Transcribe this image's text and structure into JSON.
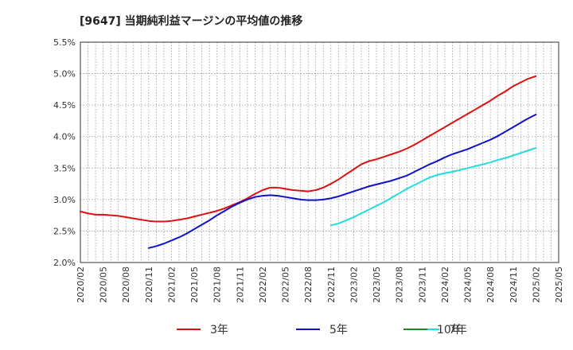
{
  "chart_data": {
    "type": "line",
    "title": "[9647]  当期純利益マージンの平均値の推移",
    "xlabel": "",
    "ylabel": "",
    "ylim": [
      2.0,
      5.5
    ],
    "y_ticks": [
      "2.0%",
      "2.5%",
      "3.0%",
      "3.5%",
      "4.0%",
      "4.5%",
      "5.0%",
      "5.5%"
    ],
    "x_ticks": [
      "2020/02",
      "2020/05",
      "2020/08",
      "2020/11",
      "2021/02",
      "2021/05",
      "2021/08",
      "2021/11",
      "2022/02",
      "2022/05",
      "2022/08",
      "2022/11",
      "2023/02",
      "2023/05",
      "2023/08",
      "2023/11",
      "2024/02",
      "2024/05",
      "2024/08",
      "2024/11",
      "2025/02",
      "2025/05"
    ],
    "grid": true,
    "legend_position": "bottom",
    "series": [
      {
        "name": "3年",
        "color": "#dd1111",
        "points": [
          [
            "2020/02",
            2.81
          ],
          [
            "2020/03",
            2.78
          ],
          [
            "2020/04",
            2.76
          ],
          [
            "2020/05",
            2.76
          ],
          [
            "2020/06",
            2.75
          ],
          [
            "2020/07",
            2.74
          ],
          [
            "2020/08",
            2.72
          ],
          [
            "2020/09",
            2.7
          ],
          [
            "2020/10",
            2.68
          ],
          [
            "2020/11",
            2.66
          ],
          [
            "2020/12",
            2.65
          ],
          [
            "2021/01",
            2.65
          ],
          [
            "2021/02",
            2.66
          ],
          [
            "2021/03",
            2.68
          ],
          [
            "2021/04",
            2.7
          ],
          [
            "2021/05",
            2.73
          ],
          [
            "2021/06",
            2.76
          ],
          [
            "2021/07",
            2.79
          ],
          [
            "2021/08",
            2.82
          ],
          [
            "2021/09",
            2.86
          ],
          [
            "2021/10",
            2.91
          ],
          [
            "2021/11",
            2.96
          ],
          [
            "2021/12",
            3.02
          ],
          [
            "2022/01",
            3.09
          ],
          [
            "2022/02",
            3.15
          ],
          [
            "2022/03",
            3.19
          ],
          [
            "2022/04",
            3.19
          ],
          [
            "2022/05",
            3.17
          ],
          [
            "2022/06",
            3.15
          ],
          [
            "2022/07",
            3.14
          ],
          [
            "2022/08",
            3.13
          ],
          [
            "2022/09",
            3.15
          ],
          [
            "2022/10",
            3.19
          ],
          [
            "2022/11",
            3.25
          ],
          [
            "2022/12",
            3.32
          ],
          [
            "2023/01",
            3.4
          ],
          [
            "2023/02",
            3.48
          ],
          [
            "2023/03",
            3.56
          ],
          [
            "2023/04",
            3.61
          ],
          [
            "2023/05",
            3.64
          ],
          [
            "2023/06",
            3.68
          ],
          [
            "2023/07",
            3.72
          ],
          [
            "2023/08",
            3.76
          ],
          [
            "2023/09",
            3.81
          ],
          [
            "2023/10",
            3.87
          ],
          [
            "2023/11",
            3.94
          ],
          [
            "2023/12",
            4.01
          ],
          [
            "2024/01",
            4.08
          ],
          [
            "2024/02",
            4.15
          ],
          [
            "2024/03",
            4.22
          ],
          [
            "2024/04",
            4.29
          ],
          [
            "2024/05",
            4.36
          ],
          [
            "2024/06",
            4.43
          ],
          [
            "2024/07",
            4.5
          ],
          [
            "2024/08",
            4.57
          ],
          [
            "2024/09",
            4.65
          ],
          [
            "2024/10",
            4.72
          ],
          [
            "2024/11",
            4.8
          ],
          [
            "2024/12",
            4.86
          ],
          [
            "2025/01",
            4.92
          ],
          [
            "2025/02",
            4.96
          ]
        ]
      },
      {
        "name": "5年",
        "color": "#1111cc",
        "points": [
          [
            "2020/11",
            2.23
          ],
          [
            "2020/12",
            2.26
          ],
          [
            "2021/01",
            2.3
          ],
          [
            "2021/02",
            2.35
          ],
          [
            "2021/03",
            2.4
          ],
          [
            "2021/04",
            2.46
          ],
          [
            "2021/05",
            2.53
          ],
          [
            "2021/06",
            2.6
          ],
          [
            "2021/07",
            2.67
          ],
          [
            "2021/08",
            2.75
          ],
          [
            "2021/09",
            2.82
          ],
          [
            "2021/10",
            2.89
          ],
          [
            "2021/11",
            2.95
          ],
          [
            "2021/12",
            3.0
          ],
          [
            "2022/01",
            3.04
          ],
          [
            "2022/02",
            3.06
          ],
          [
            "2022/03",
            3.07
          ],
          [
            "2022/04",
            3.06
          ],
          [
            "2022/05",
            3.04
          ],
          [
            "2022/06",
            3.02
          ],
          [
            "2022/07",
            3.0
          ],
          [
            "2022/08",
            2.99
          ],
          [
            "2022/09",
            2.99
          ],
          [
            "2022/10",
            3.0
          ],
          [
            "2022/11",
            3.02
          ],
          [
            "2022/12",
            3.05
          ],
          [
            "2023/01",
            3.09
          ],
          [
            "2023/02",
            3.13
          ],
          [
            "2023/03",
            3.17
          ],
          [
            "2023/04",
            3.21
          ],
          [
            "2023/05",
            3.24
          ],
          [
            "2023/06",
            3.27
          ],
          [
            "2023/07",
            3.3
          ],
          [
            "2023/08",
            3.34
          ],
          [
            "2023/09",
            3.38
          ],
          [
            "2023/10",
            3.44
          ],
          [
            "2023/11",
            3.5
          ],
          [
            "2023/12",
            3.56
          ],
          [
            "2024/01",
            3.61
          ],
          [
            "2024/02",
            3.67
          ],
          [
            "2024/03",
            3.72
          ],
          [
            "2024/04",
            3.76
          ],
          [
            "2024/05",
            3.8
          ],
          [
            "2024/06",
            3.85
          ],
          [
            "2024/07",
            3.9
          ],
          [
            "2024/08",
            3.95
          ],
          [
            "2024/09",
            4.01
          ],
          [
            "2024/10",
            4.08
          ],
          [
            "2024/11",
            4.15
          ],
          [
            "2024/12",
            4.22
          ],
          [
            "2025/01",
            4.29
          ],
          [
            "2025/02",
            4.35
          ]
        ]
      },
      {
        "name": "7年",
        "color": "#22dddd",
        "points": [
          [
            "2022/11",
            2.59
          ],
          [
            "2022/12",
            2.62
          ],
          [
            "2023/01",
            2.67
          ],
          [
            "2023/02",
            2.72
          ],
          [
            "2023/03",
            2.78
          ],
          [
            "2023/04",
            2.84
          ],
          [
            "2023/05",
            2.9
          ],
          [
            "2023/06",
            2.96
          ],
          [
            "2023/07",
            3.03
          ],
          [
            "2023/08",
            3.1
          ],
          [
            "2023/09",
            3.17
          ],
          [
            "2023/10",
            3.23
          ],
          [
            "2023/11",
            3.29
          ],
          [
            "2023/12",
            3.35
          ],
          [
            "2024/01",
            3.39
          ],
          [
            "2024/02",
            3.42
          ],
          [
            "2024/03",
            3.44
          ],
          [
            "2024/04",
            3.47
          ],
          [
            "2024/05",
            3.5
          ],
          [
            "2024/06",
            3.53
          ],
          [
            "2024/07",
            3.56
          ],
          [
            "2024/08",
            3.59
          ],
          [
            "2024/09",
            3.63
          ],
          [
            "2024/10",
            3.66
          ],
          [
            "2024/11",
            3.7
          ],
          [
            "2024/12",
            3.74
          ],
          [
            "2025/01",
            3.78
          ],
          [
            "2025/02",
            3.82
          ]
        ]
      },
      {
        "name": "10年",
        "color": "#228822",
        "points": []
      }
    ]
  }
}
